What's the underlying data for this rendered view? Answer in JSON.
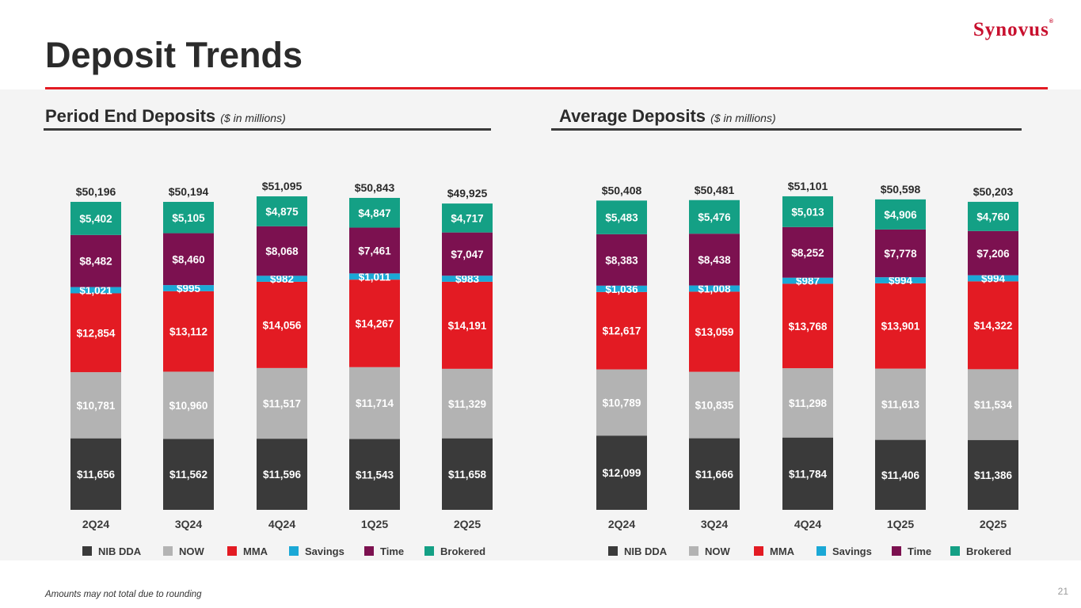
{
  "header": {
    "logo": "Synovus",
    "logo_mark": "®",
    "title": "Deposit Trends"
  },
  "footer": {
    "note": "Amounts may not total due to rounding",
    "page_number": "21"
  },
  "colors": {
    "NIB DDA": "#3a3a3a",
    "NOW": "#b3b3b3",
    "MMA": "#e31b23",
    "Savings": "#1ba8d6",
    "Time": "#7c1150",
    "Brokered": "#14a085"
  },
  "chart_data": [
    {
      "type": "bar",
      "stacked": true,
      "title": "Period End Deposits",
      "subtitle": "($ in millions)",
      "categories": [
        "2Q24",
        "3Q24",
        "4Q24",
        "1Q25",
        "2Q25"
      ],
      "totals": [
        "$50,196",
        "$50,194",
        "$51,095",
        "$50,843",
        "$49,925"
      ],
      "series": [
        {
          "name": "NIB DDA",
          "values": [
            11656,
            11562,
            11596,
            11543,
            11658
          ],
          "labels": [
            "$11,656",
            "$11,562",
            "$11,596",
            "$11,543",
            "$11,658"
          ]
        },
        {
          "name": "NOW",
          "values": [
            10781,
            10960,
            11517,
            11714,
            11329
          ],
          "labels": [
            "$10,781",
            "$10,960",
            "$11,517",
            "$11,714",
            "$11,329"
          ]
        },
        {
          "name": "MMA",
          "values": [
            12854,
            13112,
            14056,
            14267,
            14191
          ],
          "labels": [
            "$12,854",
            "$13,112",
            "$14,056",
            "$14,267",
            "$14,191"
          ]
        },
        {
          "name": "Savings",
          "values": [
            1021,
            995,
            982,
            1011,
            983
          ],
          "labels": [
            "$1,021",
            "$995",
            "$982",
            "$1,011",
            "$983"
          ]
        },
        {
          "name": "Time",
          "values": [
            8482,
            8460,
            8068,
            7461,
            7047
          ],
          "labels": [
            "$8,482",
            "$8,460",
            "$8,068",
            "$7,461",
            "$7,047"
          ]
        },
        {
          "name": "Brokered",
          "values": [
            5402,
            5105,
            4875,
            4847,
            4717
          ],
          "labels": [
            "$5,402",
            "$5,105",
            "$4,875",
            "$4,847",
            "$4,717"
          ]
        }
      ],
      "legend": [
        "NIB DDA",
        "NOW",
        "MMA",
        "Savings",
        "Time",
        "Brokered"
      ],
      "legend_position": "bottom",
      "grid": false,
      "ylim": [
        0,
        52000
      ]
    },
    {
      "type": "bar",
      "stacked": true,
      "title": "Average Deposits",
      "subtitle": "($ in millions)",
      "categories": [
        "2Q24",
        "3Q24",
        "4Q24",
        "1Q25",
        "2Q25"
      ],
      "totals": [
        "$50,408",
        "$50,481",
        "$51,101",
        "$50,598",
        "$50,203"
      ],
      "series": [
        {
          "name": "NIB DDA",
          "values": [
            12099,
            11666,
            11784,
            11406,
            11386
          ],
          "labels": [
            "$12,099",
            "$11,666",
            "$11,784",
            "$11,406",
            "$11,386"
          ]
        },
        {
          "name": "NOW",
          "values": [
            10789,
            10835,
            11298,
            11613,
            11534
          ],
          "labels": [
            "$10,789",
            "$10,835",
            "$11,298",
            "$11,613",
            "$11,534"
          ]
        },
        {
          "name": "MMA",
          "values": [
            12617,
            13059,
            13768,
            13901,
            14322
          ],
          "labels": [
            "$12,617",
            "$13,059",
            "$13,768",
            "$13,901",
            "$14,322"
          ]
        },
        {
          "name": "Savings",
          "values": [
            1036,
            1008,
            987,
            994,
            994
          ],
          "labels": [
            "$1,036",
            "$1,008",
            "$987",
            "$994",
            "$994"
          ]
        },
        {
          "name": "Time",
          "values": [
            8383,
            8438,
            8252,
            7778,
            7206
          ],
          "labels": [
            "$8,383",
            "$8,438",
            "$8,252",
            "$7,778",
            "$7,206"
          ]
        },
        {
          "name": "Brokered",
          "values": [
            5483,
            5476,
            5013,
            4906,
            4760
          ],
          "labels": [
            "$5,483",
            "$5,476",
            "$5,013",
            "$4,906",
            "$4,760"
          ]
        }
      ],
      "legend": [
        "NIB DDA",
        "NOW",
        "MMA",
        "Savings",
        "Time",
        "Brokered"
      ],
      "legend_position": "bottom",
      "grid": false,
      "ylim": [
        0,
        52000
      ]
    }
  ]
}
